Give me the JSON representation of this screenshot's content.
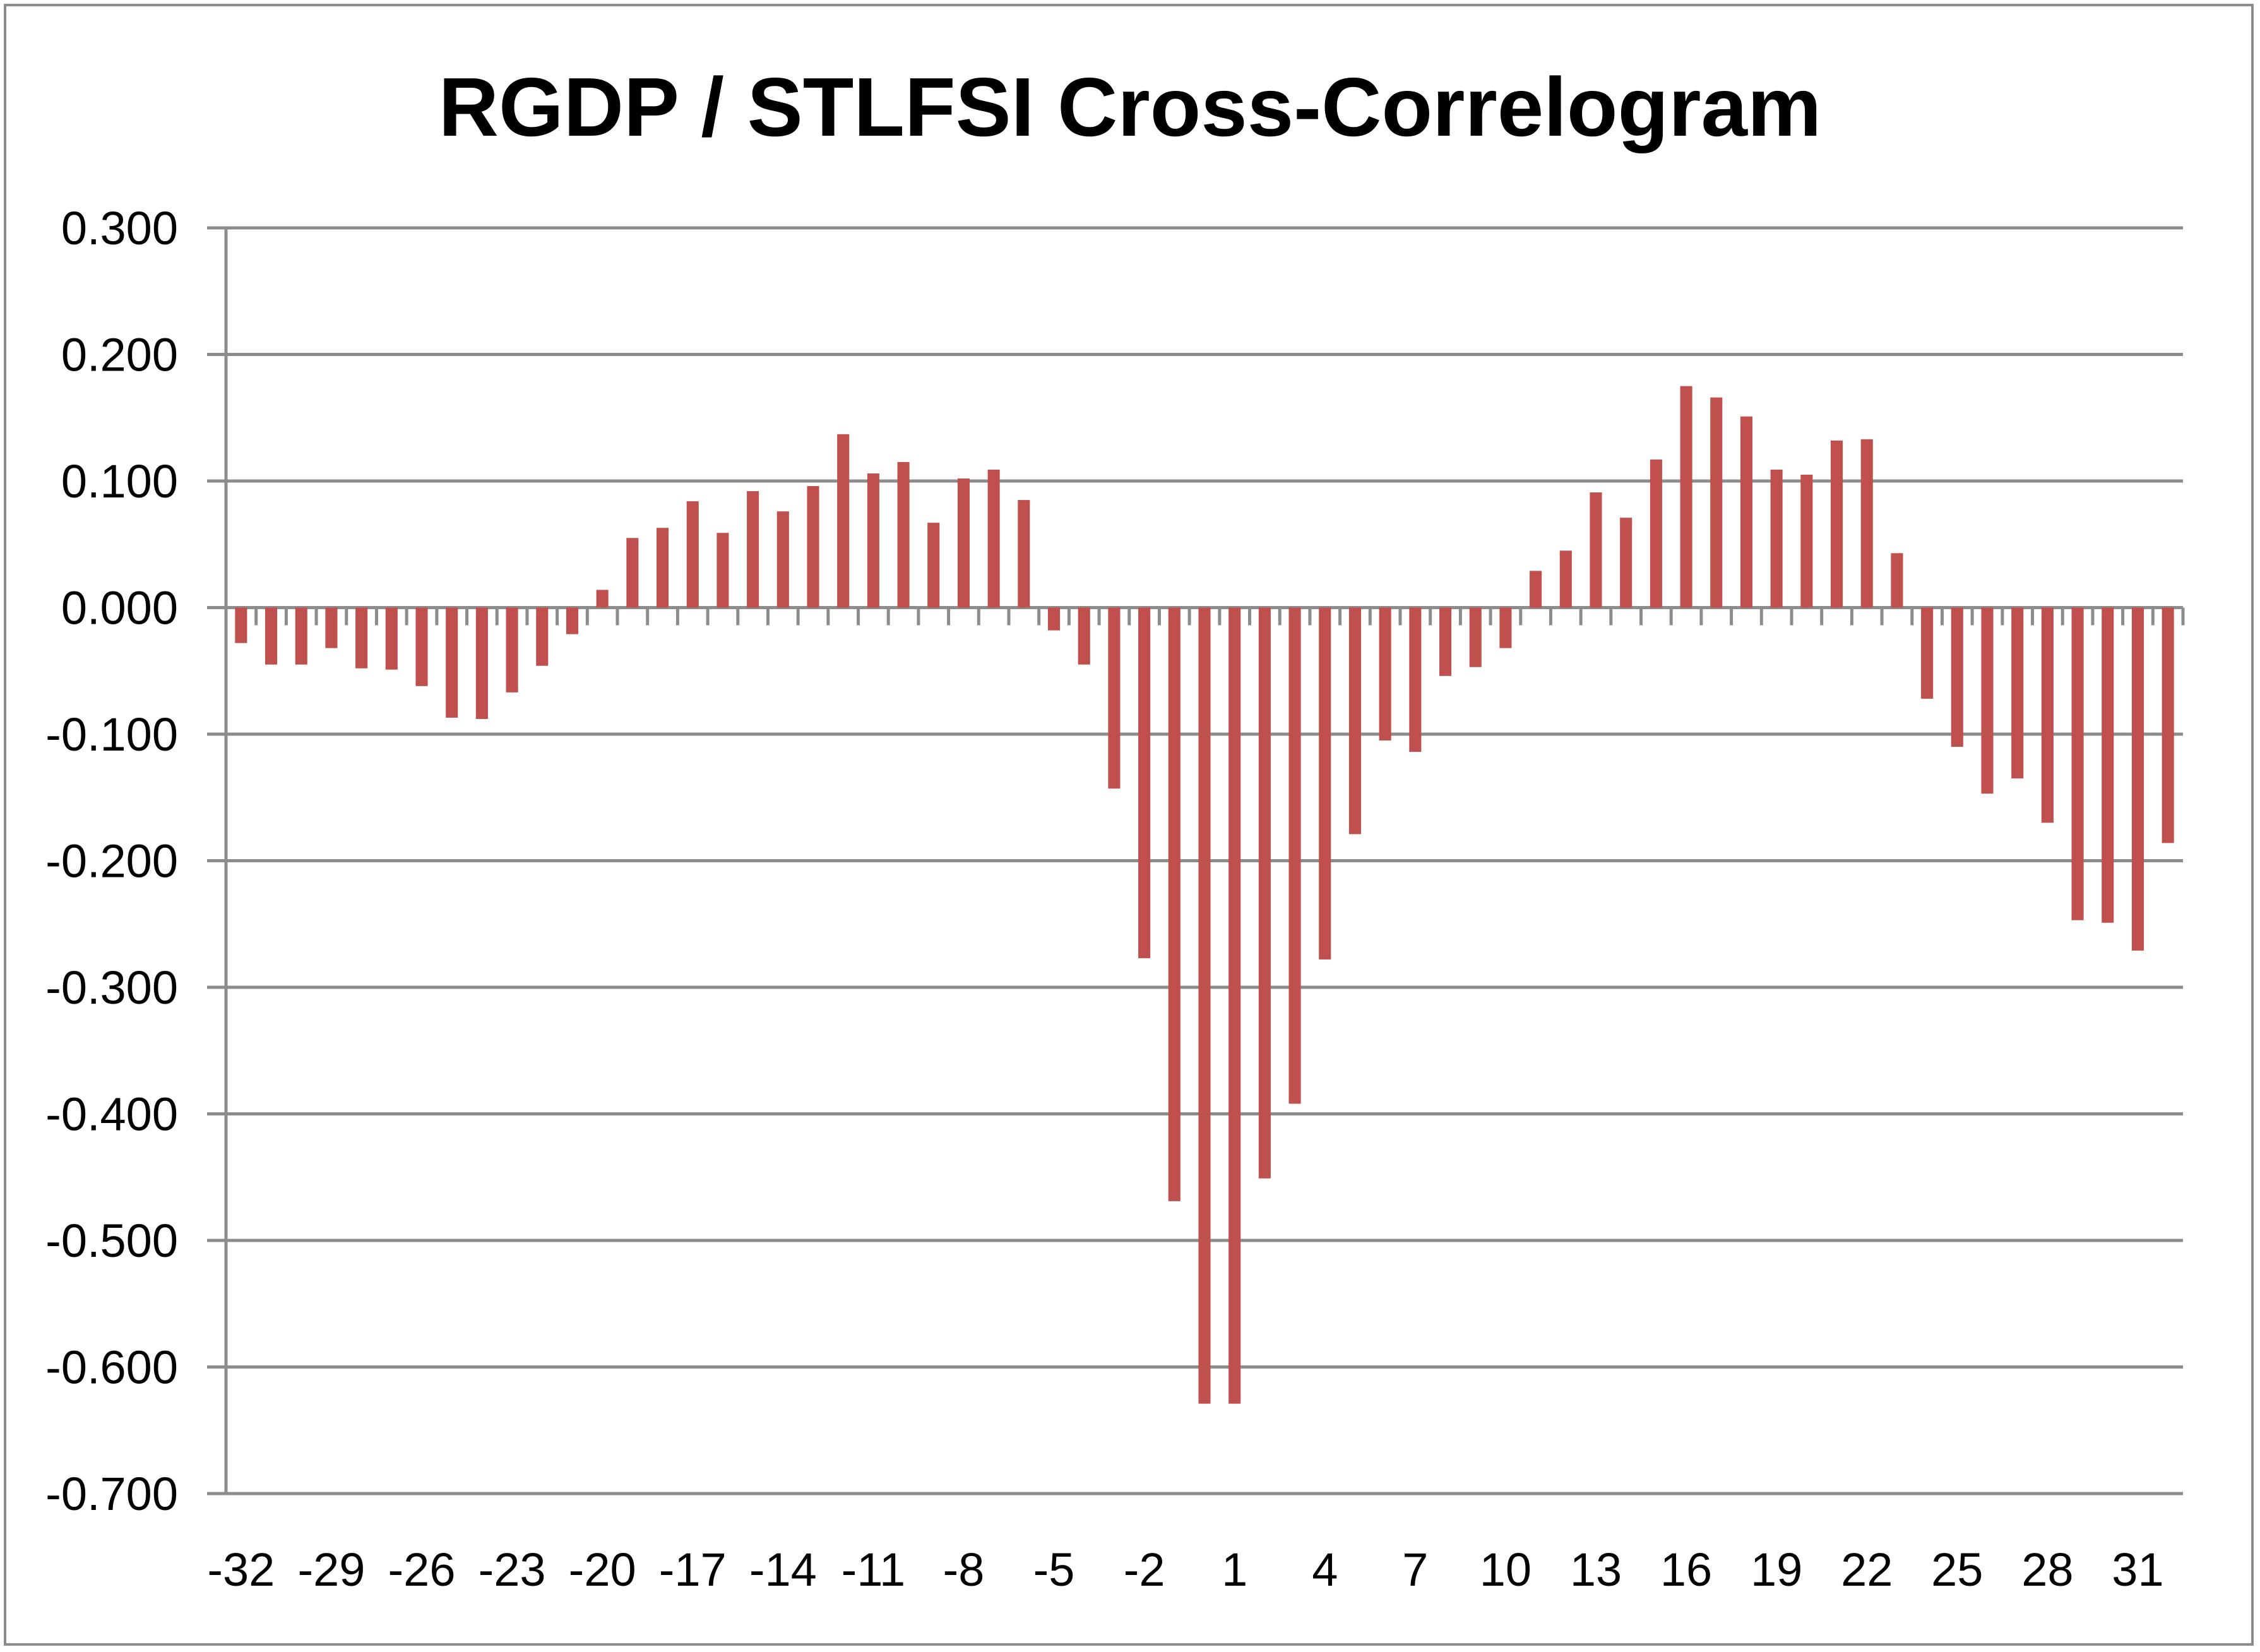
{
  "chart_data": {
    "type": "bar",
    "title": "RGDP / STLFSI Cross-Correlogram",
    "xlabel": "",
    "ylabel": "",
    "ylim": [
      -0.7,
      0.3
    ],
    "y_ticks": [
      "0.300",
      "0.200",
      "0.100",
      "0.000",
      "-0.100",
      "-0.200",
      "-0.300",
      "-0.400",
      "-0.500",
      "-0.600",
      "-0.700"
    ],
    "x_tick_labels": [
      "-32",
      "-29",
      "-26",
      "-23",
      "-20",
      "-17",
      "-14",
      "-11",
      "-8",
      "-5",
      "-2",
      "1",
      "4",
      "7",
      "10",
      "13",
      "16",
      "19",
      "22",
      "25",
      "28",
      "31"
    ],
    "grid": true,
    "legend": "none",
    "bar_color": "#c0504d",
    "categories": [
      -32,
      -31,
      -30,
      -29,
      -28,
      -27,
      -26,
      -25,
      -24,
      -23,
      -22,
      -21,
      -20,
      -19,
      -18,
      -17,
      -16,
      -15,
      -14,
      -13,
      -12,
      -11,
      -10,
      -9,
      -8,
      -7,
      -6,
      -5,
      -4,
      -3,
      -2,
      -1,
      0,
      1,
      2,
      3,
      4,
      5,
      6,
      7,
      8,
      9,
      10,
      11,
      12,
      13,
      14,
      15,
      16,
      17,
      18,
      19,
      20,
      21,
      22,
      23,
      24,
      25,
      26,
      27,
      28,
      29,
      30,
      31,
      32
    ],
    "values": [
      -0.028,
      -0.045,
      -0.045,
      -0.032,
      -0.048,
      -0.049,
      -0.062,
      -0.087,
      -0.088,
      -0.067,
      -0.046,
      -0.021,
      0.014,
      0.055,
      0.063,
      0.084,
      0.059,
      0.092,
      0.076,
      0.096,
      0.137,
      0.106,
      0.115,
      0.067,
      0.102,
      0.109,
      0.085,
      -0.018,
      -0.045,
      -0.143,
      -0.277,
      -0.469,
      -0.629,
      -0.629,
      -0.451,
      -0.392,
      -0.278,
      -0.179,
      -0.105,
      -0.114,
      -0.054,
      -0.047,
      -0.032,
      0.029,
      0.045,
      0.091,
      0.071,
      0.117,
      0.175,
      0.166,
      0.151,
      0.109,
      0.105,
      0.132,
      0.133,
      0.043,
      -0.072,
      -0.11,
      -0.147,
      -0.135,
      -0.17,
      -0.247,
      -0.249,
      -0.271,
      -0.186
    ]
  }
}
